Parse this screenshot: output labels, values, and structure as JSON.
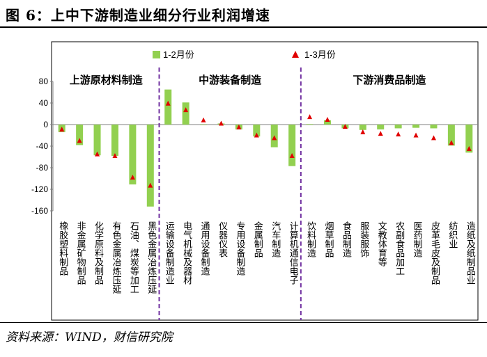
{
  "title": "图 6：上中下游制造业细分行业利润增速",
  "source": "资料来源：WIND，财信研究院",
  "chart_data": {
    "type": "bar",
    "ylim": [
      -160,
      80
    ],
    "yticks": [
      80,
      40,
      0,
      -40,
      -80,
      -120,
      -160
    ],
    "legend": {
      "placement": "top",
      "bar_label": "1-2月份",
      "marker_label": "1-3月份"
    },
    "colors": {
      "bar": "#92d050",
      "marker": "#e00000",
      "divider": "#7030a0"
    },
    "sections": [
      {
        "label": "上游原材料制造",
        "count": 6
      },
      {
        "label": "中游装备制造",
        "count": 8
      },
      {
        "label": "下游消费品制造",
        "count": 10
      }
    ],
    "categories": [
      "橡胶塑料制品",
      "非金属矿物制品",
      "化学原料及制品",
      "有色金属冶炼压延",
      "石油、煤炭等加工",
      "黑色金属冶炼压延",
      "运输设备制造业",
      "电气机械及器材",
      "通用设备制造",
      "仪器仪表",
      "专用设备制造",
      "金属制品",
      "汽车制造",
      "计算机通信电子",
      "饮料制造",
      "烟草制品",
      "食品制造",
      "服装服饰",
      "文教体育等",
      "农副食品加工",
      "医药制造",
      "皮革毛皮及制品",
      "纺织业",
      "造纸及纸制品业"
    ],
    "series": [
      {
        "name": "1-2月份",
        "kind": "bar",
        "values": [
          -14,
          -38,
          -57,
          -58,
          -111,
          -152,
          65,
          41,
          0,
          2,
          -9,
          -22,
          -42,
          -77,
          1,
          8,
          -7,
          -10,
          -9,
          -7,
          -6,
          -7,
          -39,
          -52
        ]
      },
      {
        "name": "1-3月份",
        "kind": "marker",
        "values": [
          -9,
          -30,
          -55,
          -58,
          -98,
          -113,
          39,
          27,
          8,
          2,
          -5,
          -20,
          -25,
          -58,
          14,
          9,
          -4,
          -14,
          -17,
          -18,
          -20,
          -25,
          -34,
          -45
        ]
      }
    ]
  }
}
